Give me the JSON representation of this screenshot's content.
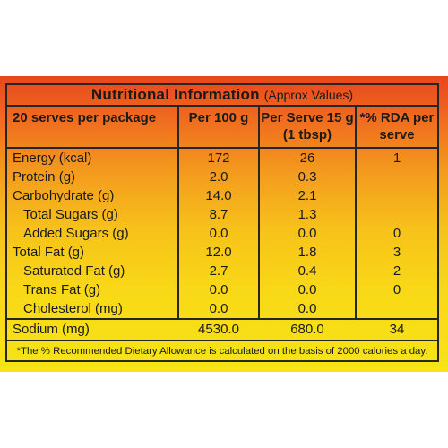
{
  "label": {
    "title": "Nutritional Information",
    "subtitle": "(Approx Values)",
    "headers": {
      "basis": "20 serves per package",
      "per100g": "Per 100 g",
      "per_serve": "Per Serve 15 g (1 tbsp)",
      "rda": "*% RDA per serve"
    },
    "rows": [
      {
        "name": "Energy (kcal)",
        "per100g": "172",
        "per_serve": "26",
        "rda": "1"
      },
      {
        "name": "Protein (g)",
        "per100g": "2.0",
        "per_serve": "0.3",
        "rda": ""
      },
      {
        "name": "Carbohydrate (g)",
        "per100g": "14.0",
        "per_serve": "2.1",
        "rda": ""
      },
      {
        "name": "Total Sugars (g)",
        "per100g": "8.7",
        "per_serve": "1.3",
        "rda": ""
      },
      {
        "name": "Added Sugars (g)",
        "per100g": "0.0",
        "per_serve": "0.0",
        "rda": "0"
      },
      {
        "name": "Total Fat (g)",
        "per100g": "12.0",
        "per_serve": "1.8",
        "rda": "3"
      },
      {
        "name": "Saturated Fat (g)",
        "per100g": "2.7",
        "per_serve": "0.4",
        "rda": "2"
      },
      {
        "name": "Trans Fat (g)",
        "per100g": "0.0",
        "per_serve": "0.0",
        "rda": "0"
      },
      {
        "name": "Cholesterol (mg)",
        "per100g": "0.0",
        "per_serve": "0.0",
        "rda": ""
      },
      {
        "name": "Sodium (mg)",
        "per100g": "4530.0",
        "per_serve": "680.0",
        "rda": "34"
      }
    ],
    "footnote": "*The % Recommended Dietary Allowance is calculated on the basis of 2000 calories a day."
  },
  "colors": {
    "gradient_top": "#e8461e",
    "gradient_bottom": "#f6e416",
    "rule": "#262626"
  }
}
